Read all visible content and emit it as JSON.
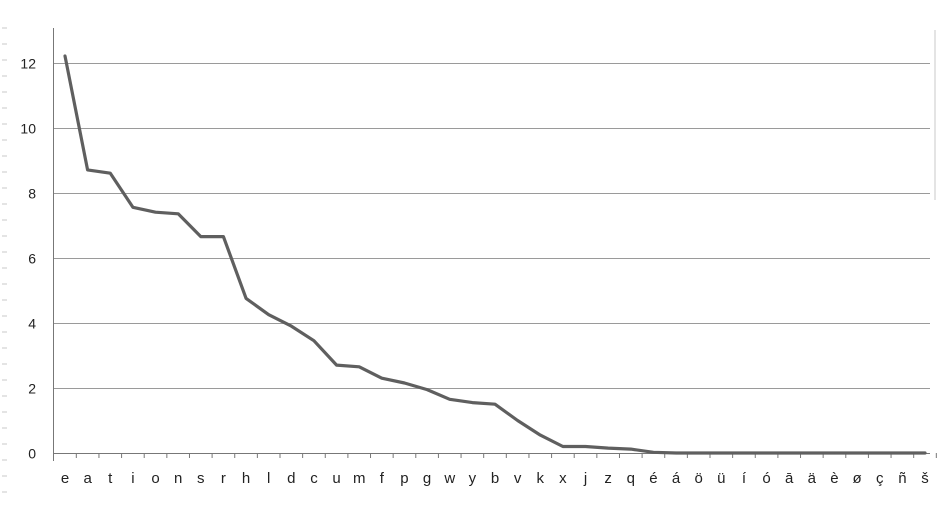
{
  "chart_data": {
    "type": "line",
    "title": "",
    "xlabel": "",
    "ylabel": "",
    "ylim": [
      0,
      13
    ],
    "yticks": [
      0,
      2,
      4,
      6,
      8,
      10,
      12
    ],
    "grid": true,
    "legend": "none",
    "colors": {
      "series": "#5f5f5f",
      "grid": "#9a9a9a",
      "axis": "#777777"
    },
    "categories": [
      "e",
      "a",
      "t",
      "i",
      "o",
      "n",
      "s",
      "r",
      "h",
      "l",
      "d",
      "c",
      "u",
      "m",
      "f",
      "p",
      "g",
      "w",
      "y",
      "b",
      "v",
      "k",
      "x",
      "j",
      "z",
      "q",
      "é",
      "á",
      "ö",
      "ü",
      "í",
      "ó",
      "ā",
      "ä",
      "è",
      "ø",
      "ç",
      "ñ",
      "š"
    ],
    "series": [
      {
        "values": [
          12.2,
          8.7,
          8.6,
          7.55,
          7.4,
          7.35,
          6.65,
          6.65,
          4.75,
          4.25,
          3.9,
          3.45,
          2.7,
          2.65,
          2.3,
          2.15,
          1.95,
          1.65,
          1.55,
          1.5,
          1.0,
          0.55,
          0.2,
          0.2,
          0.15,
          0.12,
          0.02,
          0.0,
          0.0,
          0.0,
          0.0,
          0.0,
          0.0,
          0.0,
          0.0,
          0.0,
          0.0,
          0.0,
          0.0
        ]
      }
    ]
  }
}
